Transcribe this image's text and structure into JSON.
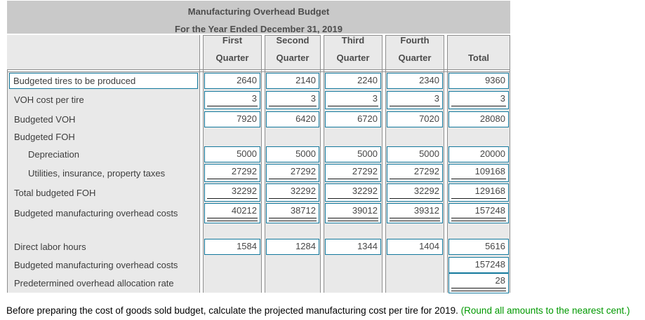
{
  "title_band": {
    "line1": "Manufacturing Overhead Budget",
    "line2": "For the Year Ended December 31, 2019"
  },
  "columns": [
    {
      "line1": "First",
      "line2": "Quarter"
    },
    {
      "line1": "Second",
      "line2": "Quarter"
    },
    {
      "line1": "Third",
      "line2": "Quarter"
    },
    {
      "line1": "Fourth",
      "line2": "Quarter"
    },
    {
      "line1": "",
      "line2": "Total"
    }
  ],
  "rows": [
    {
      "label": "Budgeted tires to be produced",
      "boxed_label": true,
      "indent": 0,
      "cells": [
        {
          "v": "2640"
        },
        {
          "v": "2140"
        },
        {
          "v": "2240"
        },
        {
          "v": "2340"
        },
        {
          "v": "9360"
        }
      ]
    },
    {
      "label": "VOH cost per tire",
      "indent": 0,
      "cells": [
        {
          "v": "3",
          "u": 1
        },
        {
          "v": "3",
          "u": 1
        },
        {
          "v": "3",
          "u": 1
        },
        {
          "v": "3",
          "u": 1
        },
        {
          "v": "3",
          "u": 1
        }
      ]
    },
    {
      "label": "Budgeted VOH",
      "indent": 0,
      "cells": [
        {
          "v": "7920"
        },
        {
          "v": "6420"
        },
        {
          "v": "6720"
        },
        {
          "v": "7020"
        },
        {
          "v": "28080"
        }
      ]
    },
    {
      "label": "Budgeted FOH",
      "indent": 0,
      "cells": [
        null,
        null,
        null,
        null,
        null
      ]
    },
    {
      "label": "Depreciation",
      "indent": 1,
      "cells": [
        {
          "v": "5000"
        },
        {
          "v": "5000"
        },
        {
          "v": "5000"
        },
        {
          "v": "5000"
        },
        {
          "v": "20000"
        }
      ]
    },
    {
      "label": "Utilities, insurance, property taxes",
      "indent": 1,
      "cells": [
        {
          "v": "27292",
          "u": 1
        },
        {
          "v": "27292",
          "u": 1
        },
        {
          "v": "27292",
          "u": 1
        },
        {
          "v": "27292",
          "u": 1
        },
        {
          "v": "109168",
          "u": 1
        }
      ]
    },
    {
      "label": "Total budgeted FOH",
      "indent": 0,
      "cells": [
        {
          "v": "32292",
          "u": 1
        },
        {
          "v": "32292",
          "u": 1
        },
        {
          "v": "32292",
          "u": 1
        },
        {
          "v": "32292",
          "u": 1
        },
        {
          "v": "129168",
          "u": 1
        }
      ]
    },
    {
      "label": "Budgeted manufacturing overhead costs",
      "indent": 0,
      "cells": [
        {
          "v": "40212",
          "u": 2
        },
        {
          "v": "38712",
          "u": 2
        },
        {
          "v": "39012",
          "u": 2
        },
        {
          "v": "39312",
          "u": 2
        },
        {
          "v": "157248",
          "u": 2
        }
      ]
    },
    {
      "label": "",
      "spacer": true,
      "indent": 0,
      "cells": [
        null,
        null,
        null,
        null,
        null
      ]
    },
    {
      "label": "Direct labor hours",
      "indent": 0,
      "cells": [
        {
          "v": "1584"
        },
        {
          "v": "1284"
        },
        {
          "v": "1344"
        },
        {
          "v": "1404"
        },
        {
          "v": "5616"
        }
      ]
    },
    {
      "label": "Budgeted manufacturing overhead costs",
      "indent": 0,
      "cells": [
        null,
        null,
        null,
        null,
        {
          "v": "157248"
        }
      ]
    },
    {
      "label": "Predetermined overhead allocation rate",
      "indent": 0,
      "cells": [
        null,
        null,
        null,
        null,
        {
          "v": "28",
          "u": 2
        }
      ]
    }
  ],
  "footnote": {
    "text": "Before preparing the cost of goods sold budget, calculate the projected manufacturing cost per tire for 2019.",
    "note": "(Round all amounts to the nearest cent.)"
  },
  "colors": {
    "accent_teal": "#12789c",
    "title_band_gray": "#c9c9c9",
    "cell_gray": "#e9e9e9",
    "rule_gray": "#8e8e8e",
    "note_green": "#009900"
  }
}
